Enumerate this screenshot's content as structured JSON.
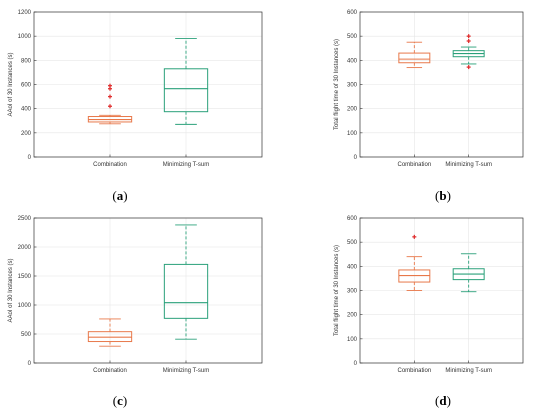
{
  "colors": {
    "combination": "#e8784a",
    "minimizing": "#2aa07a",
    "outlier": "#e03030",
    "grid": "#e6e6e6",
    "axis": "#333333"
  },
  "chart_data": [
    {
      "type": "box",
      "caption": "a",
      "ylabel": "AAoI of 30 Instances (s)",
      "ylim": [
        0,
        1200
      ],
      "yticks": [
        0,
        200,
        400,
        600,
        800,
        1000,
        1200
      ],
      "categories": [
        "Combination",
        "Minimizing T-sum"
      ],
      "grid": true,
      "series": [
        {
          "whisker_low": 275,
          "q1": 290,
          "median": 310,
          "q3": 335,
          "whisker_high": 345,
          "outliers": [
            420,
            500,
            565,
            590
          ]
        },
        {
          "whisker_low": 270,
          "q1": 375,
          "median": 565,
          "q3": 730,
          "whisker_high": 980,
          "outliers": []
        }
      ]
    },
    {
      "type": "box",
      "caption": "b",
      "ylabel": "Total flight time of 30 Instances (s)",
      "ylim": [
        0,
        600
      ],
      "yticks": [
        0,
        100,
        200,
        300,
        400,
        500,
        600
      ],
      "categories": [
        "Combination",
        "Minimizing T-sum"
      ],
      "grid": true,
      "series": [
        {
          "whisker_low": 370,
          "q1": 390,
          "median": 405,
          "q3": 430,
          "whisker_high": 475,
          "outliers": []
        },
        {
          "whisker_low": 385,
          "q1": 415,
          "median": 428,
          "q3": 440,
          "whisker_high": 455,
          "outliers": [
            372,
            480,
            500
          ]
        }
      ]
    },
    {
      "type": "box",
      "caption": "c",
      "ylabel": "AAoI of 30 Instances (s)",
      "ylim": [
        0,
        2500
      ],
      "yticks": [
        0,
        500,
        1000,
        1500,
        2000,
        2500
      ],
      "categories": [
        "Combination",
        "Minimizing T-sum"
      ],
      "grid": true,
      "series": [
        {
          "whisker_low": 290,
          "q1": 370,
          "median": 445,
          "q3": 540,
          "whisker_high": 760,
          "outliers": []
        },
        {
          "whisker_low": 410,
          "q1": 770,
          "median": 1040,
          "q3": 1700,
          "whisker_high": 2380,
          "outliers": []
        }
      ]
    },
    {
      "type": "box",
      "caption": "d",
      "ylabel": "Total flight time of 30 Instances (s)",
      "ylim": [
        0,
        600
      ],
      "yticks": [
        0,
        100,
        200,
        300,
        400,
        500,
        600
      ],
      "categories": [
        "Combination",
        "Minimizing T-sum"
      ],
      "grid": true,
      "series": [
        {
          "whisker_low": 300,
          "q1": 335,
          "median": 362,
          "q3": 385,
          "whisker_high": 440,
          "outliers": [
            522
          ]
        },
        {
          "whisker_low": 295,
          "q1": 345,
          "median": 368,
          "q3": 390,
          "whisker_high": 452,
          "outliers": []
        }
      ]
    }
  ]
}
